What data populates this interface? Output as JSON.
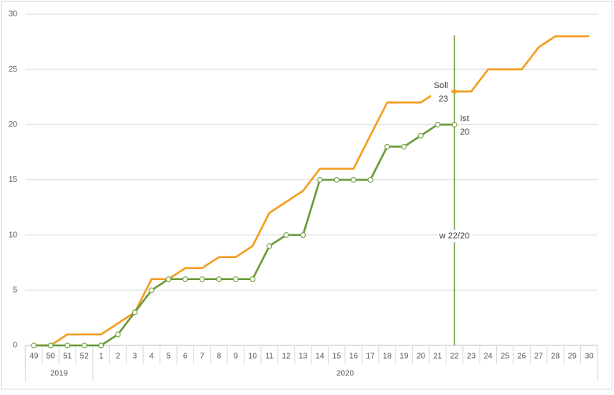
{
  "chart_data": {
    "type": "line",
    "categories": [
      "49",
      "50",
      "51",
      "52",
      "1",
      "2",
      "3",
      "4",
      "5",
      "6",
      "7",
      "8",
      "9",
      "10",
      "11",
      "12",
      "13",
      "14",
      "15",
      "16",
      "17",
      "18",
      "19",
      "20",
      "21",
      "22",
      "23",
      "24",
      "25",
      "26",
      "27",
      "28",
      "29",
      "30"
    ],
    "groups": [
      {
        "label": "2019",
        "from": "49",
        "to": "52"
      },
      {
        "label": "2020",
        "from": "1",
        "to": "30"
      }
    ],
    "series": [
      {
        "name": "Soll",
        "color": "#f39c1f",
        "values": [
          0,
          0,
          1,
          1,
          1,
          2,
          3,
          6,
          6,
          7,
          7,
          8,
          8,
          9,
          12,
          13,
          14,
          16,
          16,
          16,
          19,
          22,
          22,
          22,
          23,
          23,
          23,
          25,
          25,
          25,
          27,
          28,
          28,
          28
        ]
      },
      {
        "name": "Ist",
        "color": "#6a9a3a",
        "values": [
          0,
          0,
          0,
          0,
          0,
          1,
          3,
          5,
          6,
          6,
          6,
          6,
          6,
          6,
          9,
          10,
          10,
          15,
          15,
          15,
          15,
          18,
          18,
          19,
          20,
          20,
          null,
          null,
          null,
          null,
          null,
          null,
          null,
          null
        ]
      }
    ],
    "annotations": [
      {
        "text": "w 22/20",
        "x": "22"
      }
    ],
    "ylim": [
      0,
      30
    ],
    "yticks": [
      0,
      5,
      10,
      15,
      20,
      25,
      30
    ],
    "grid": true
  }
}
